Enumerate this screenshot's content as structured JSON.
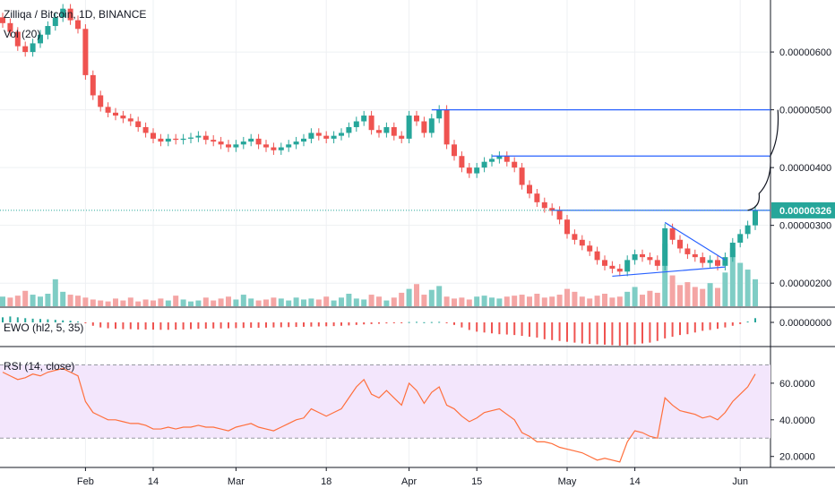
{
  "chart_data": [
    {
      "type": "candlestick",
      "title": "Zilliqa / Bitcoin, 1D, BINANCE",
      "volume_label": "Vol (20)",
      "price_axis_ticks": [
        "0.00000600",
        "0.00000500",
        "0.00000400",
        "0.00000300",
        "0.00000200"
      ],
      "price_tick_values": [
        6e-06,
        5e-06,
        4e-06,
        3e-06,
        2e-06
      ],
      "ylim": [
        1.6e-06,
        6.9e-06
      ],
      "last_price_label": "0.00000326",
      "last_price": 3.26e-06,
      "x_tick_labels": [
        "Feb",
        "14",
        "Mar",
        "18",
        "Apr",
        "15",
        "May",
        "14",
        "Jun"
      ],
      "x_tick_index": [
        11,
        20,
        31,
        43,
        54,
        63,
        75,
        84,
        98
      ],
      "closes": [
        6.5,
        6.35,
        6.1,
        6.0,
        6.15,
        6.3,
        6.45,
        6.6,
        6.75,
        6.55,
        6.4,
        5.6,
        5.25,
        5.05,
        4.95,
        4.9,
        4.85,
        4.8,
        4.7,
        4.6,
        4.5,
        4.45,
        4.5,
        4.48,
        4.5,
        4.52,
        4.55,
        4.48,
        4.45,
        4.4,
        4.35,
        4.4,
        4.45,
        4.5,
        4.4,
        4.35,
        4.3,
        4.35,
        4.4,
        4.45,
        4.5,
        4.6,
        4.55,
        4.5,
        4.55,
        4.6,
        4.7,
        4.8,
        4.9,
        4.65,
        4.6,
        4.7,
        4.55,
        4.5,
        4.9,
        4.8,
        4.6,
        4.85,
        5.0,
        4.4,
        4.2,
        4.0,
        3.9,
        4.0,
        4.1,
        4.15,
        4.2,
        4.1,
        4.0,
        3.7,
        3.55,
        3.4,
        3.3,
        3.25,
        3.1,
        2.85,
        2.75,
        2.65,
        2.55,
        2.4,
        2.3,
        2.25,
        2.2,
        2.4,
        2.5,
        2.45,
        2.4,
        2.3,
        2.95,
        2.75,
        2.6,
        2.5,
        2.45,
        2.35,
        2.4,
        2.3,
        2.45,
        2.7,
        2.85,
        3.0,
        3.26
      ],
      "volumes": [
        1.0,
        0.9,
        1.1,
        1.6,
        1.2,
        1.0,
        1.3,
        2.8,
        1.5,
        1.2,
        1.1,
        0.9,
        0.7,
        0.6,
        0.5,
        0.8,
        0.6,
        0.9,
        0.5,
        0.7,
        0.6,
        0.8,
        0.6,
        1.1,
        0.7,
        0.5,
        0.6,
        0.9,
        0.6,
        0.8,
        1.0,
        0.7,
        1.2,
        0.8,
        0.6,
        0.7,
        0.9,
        0.8,
        0.6,
        0.9,
        0.7,
        0.8,
        0.7,
        1.0,
        0.6,
        0.9,
        1.3,
        0.8,
        0.7,
        1.2,
        1.0,
        0.6,
        0.9,
        1.4,
        1.8,
        2.3,
        1.2,
        1.7,
        2.1,
        1.0,
        0.8,
        0.9,
        0.7,
        1.0,
        1.1,
        0.9,
        0.8,
        1.0,
        1.1,
        1.2,
        1.0,
        1.3,
        0.9,
        1.0,
        1.2,
        1.8,
        1.5,
        1.0,
        0.8,
        1.1,
        1.3,
        0.9,
        1.0,
        1.5,
        2.0,
        1.2,
        1.6,
        1.4,
        6.5,
        3.2,
        2.2,
        2.5,
        2.0,
        1.8,
        2.4,
        1.9,
        3.5,
        6.0,
        4.5,
        3.8,
        2.8
      ],
      "triangle": {
        "upper": [
          [
            88,
            3.05e-06
          ],
          [
            96,
            2.4e-06
          ]
        ],
        "lower": [
          [
            81,
            2.12e-06
          ],
          [
            96,
            2.28e-06
          ]
        ]
      },
      "resistance_levels": [
        5e-06,
        4.2e-06
      ],
      "resistance_start_index": [
        57,
        65
      ],
      "support_level": 3.26e-06,
      "support_start_index": 73,
      "projection_path": [
        [
          99,
          3.26e-06
        ],
        [
          100.5,
          3.55e-06
        ],
        [
          102,
          4.2e-06
        ],
        [
          103,
          5e-06
        ]
      ],
      "colors": {
        "up": "#26a69a",
        "down": "#ef5350",
        "vol_up": "#7fcdc5",
        "vol_down": "#f4a5a4",
        "level": "#2962ff",
        "last": "#26a69a"
      }
    },
    {
      "type": "histogram",
      "title": "EWO (hl2, 5, 35)",
      "axis_ticks": [
        "0.00000000"
      ],
      "values": [
        0.3,
        0.35,
        0.3,
        0.25,
        0.22,
        0.2,
        0.18,
        0.15,
        0.12,
        0.1,
        0.05,
        -0.05,
        -0.2,
        -0.3,
        -0.35,
        -0.38,
        -0.4,
        -0.4,
        -0.42,
        -0.42,
        -0.43,
        -0.44,
        -0.44,
        -0.43,
        -0.42,
        -0.4,
        -0.38,
        -0.37,
        -0.36,
        -0.36,
        -0.35,
        -0.34,
        -0.33,
        -0.32,
        -0.32,
        -0.31,
        -0.3,
        -0.29,
        -0.28,
        -0.27,
        -0.26,
        -0.25,
        -0.24,
        -0.23,
        -0.22,
        -0.2,
        -0.18,
        -0.15,
        -0.12,
        -0.1,
        -0.08,
        -0.06,
        -0.05,
        -0.03,
        0.02,
        0.03,
        0.01,
        0.02,
        0.03,
        -0.05,
        -0.15,
        -0.3,
        -0.45,
        -0.55,
        -0.6,
        -0.65,
        -0.7,
        -0.72,
        -0.75,
        -0.8,
        -0.85,
        -0.9,
        -1.0,
        -1.05,
        -1.1,
        -1.15,
        -1.2,
        -1.25,
        -1.28,
        -1.3,
        -1.32,
        -1.35,
        -1.38,
        -1.35,
        -1.3,
        -1.25,
        -1.2,
        -1.1,
        -0.95,
        -0.85,
        -0.75,
        -0.7,
        -0.6,
        -0.5,
        -0.45,
        -0.38,
        -0.3,
        -0.2,
        -0.1,
        0.05,
        0.25
      ],
      "colors": {
        "pos": "#26a69a",
        "neg": "#ef5350"
      }
    },
    {
      "type": "line",
      "title": "RSI (14, close)",
      "axis_ticks": [
        "60.0000",
        "40.0000",
        "20.0000"
      ],
      "axis_tick_values": [
        60,
        40,
        20
      ],
      "band": [
        30,
        70
      ],
      "ylim": [
        14,
        80
      ],
      "values": [
        66,
        64,
        62,
        63,
        65,
        64,
        66,
        67,
        68,
        66,
        64,
        50,
        44,
        42,
        40,
        40,
        39,
        38,
        38,
        37,
        35,
        35,
        36,
        35,
        36,
        36,
        37,
        36,
        36,
        35,
        34,
        36,
        37,
        38,
        36,
        35,
        34,
        36,
        38,
        40,
        41,
        46,
        44,
        42,
        44,
        46,
        52,
        58,
        62,
        54,
        52,
        56,
        52,
        48,
        60,
        56,
        49,
        55,
        58,
        48,
        46,
        42,
        39,
        41,
        44,
        45,
        46,
        43,
        40,
        33,
        31,
        28,
        28,
        27,
        25,
        24,
        23,
        22,
        20,
        18,
        19,
        18,
        17,
        28,
        34,
        33,
        31,
        30,
        52,
        48,
        45,
        44,
        43,
        41,
        42,
        40,
        44,
        50,
        54,
        58,
        65
      ],
      "colors": {
        "line": "#ff6f3c",
        "band": "#f3e6fc",
        "band_line": "#9598a1"
      }
    }
  ]
}
